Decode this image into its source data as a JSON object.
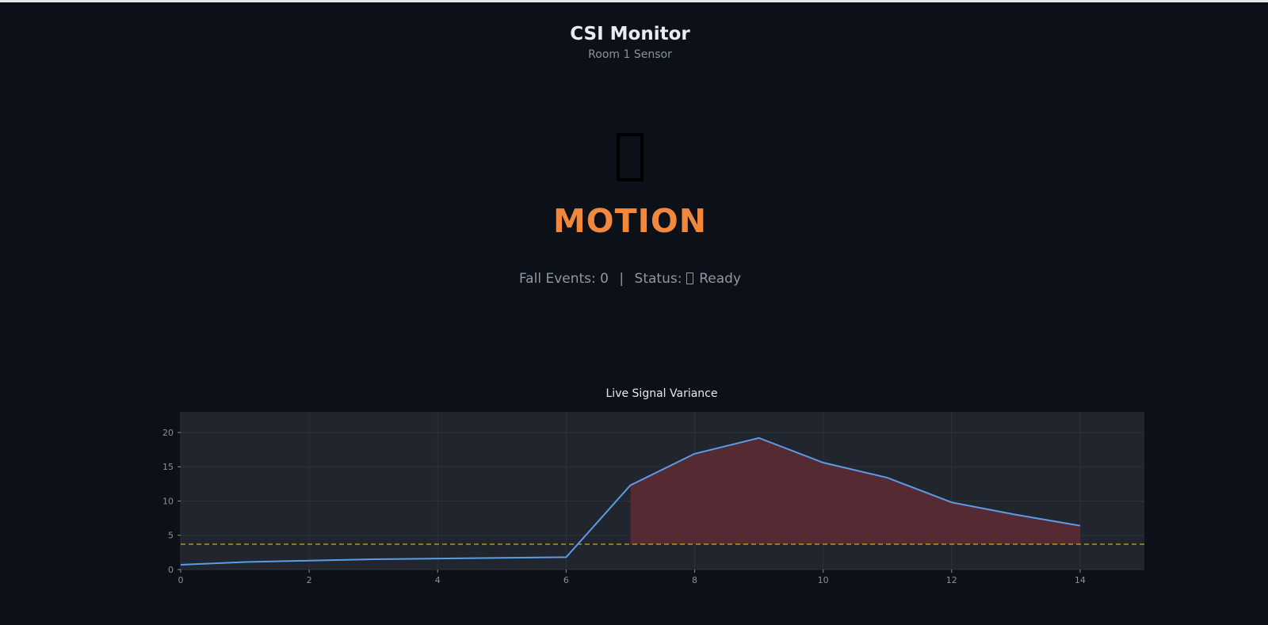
{
  "header": {
    "title": "CSI Monitor",
    "subtitle": "Room 1 Sensor"
  },
  "state": {
    "icon": "person-motion-icon",
    "label": "MOTION",
    "color": "#f0883e"
  },
  "summary": {
    "fall_events_label": "Fall Events:",
    "fall_events_value": "0",
    "separator": "|",
    "status_label": "Status:",
    "status_icon": "status-check-icon",
    "status_value": "Ready"
  },
  "colors": {
    "background": "#0c1018",
    "plot_background": "#21252d",
    "line": "#5b9ce6",
    "fill": "#5b2b33",
    "threshold": "#d4a325"
  },
  "chart_data": {
    "type": "line",
    "title": "Live Signal Variance",
    "xlabel": "",
    "ylabel": "",
    "xlim": [
      0,
      15
    ],
    "ylim": [
      0,
      23
    ],
    "xticks": [
      0,
      2,
      4,
      6,
      8,
      10,
      12,
      14
    ],
    "yticks": [
      0,
      5,
      10,
      15,
      20
    ],
    "grid": true,
    "threshold": 3.7,
    "highlight_from_x": 7,
    "series": [
      {
        "name": "variance",
        "x": [
          0,
          1,
          2,
          3,
          4,
          5,
          6,
          7,
          8,
          9,
          10,
          11,
          12,
          13,
          14
        ],
        "values": [
          0.7,
          1.1,
          1.3,
          1.5,
          1.6,
          1.7,
          1.8,
          12.3,
          16.9,
          19.2,
          15.6,
          13.4,
          9.8,
          8.0,
          6.4
        ]
      }
    ]
  }
}
